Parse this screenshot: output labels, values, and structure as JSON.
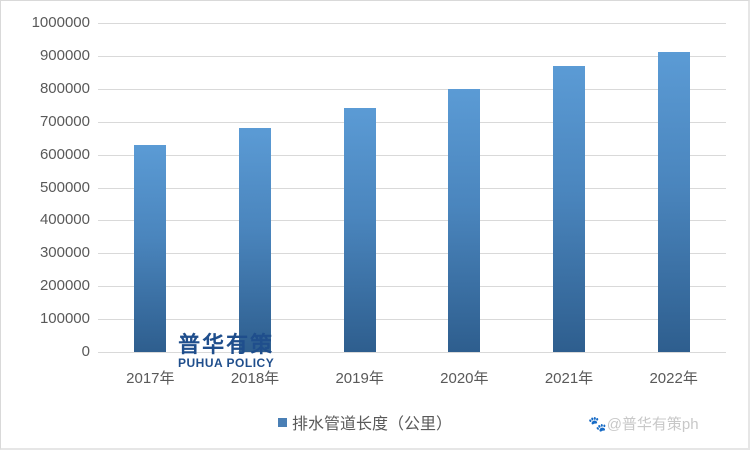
{
  "chart_data": {
    "type": "bar",
    "title": "",
    "xlabel": "",
    "ylabel": "",
    "categories": [
      "2017年",
      "2018年",
      "2019年",
      "2020年",
      "2021年",
      "2022年"
    ],
    "series": [
      {
        "name": "排水管道长度（公里）",
        "values": [
          630000,
          681000,
          742000,
          800000,
          869000,
          913000
        ],
        "color": "#4a85bd"
      }
    ],
    "ylim": [
      0,
      1000000
    ],
    "yticks": [
      "1000000",
      "900000",
      "800000",
      "700000",
      "600000",
      "500000",
      "400000",
      "300000",
      "200000",
      "100000",
      "0"
    ],
    "grid": true,
    "legend_position": "bottom"
  },
  "legend": {
    "label": "排水管道长度（公里）"
  },
  "logo": {
    "cn": "普华有策",
    "en": "PUHUA POLICY"
  },
  "watermark": {
    "text": "@普华有策ph",
    "icon": "paw-icon"
  }
}
